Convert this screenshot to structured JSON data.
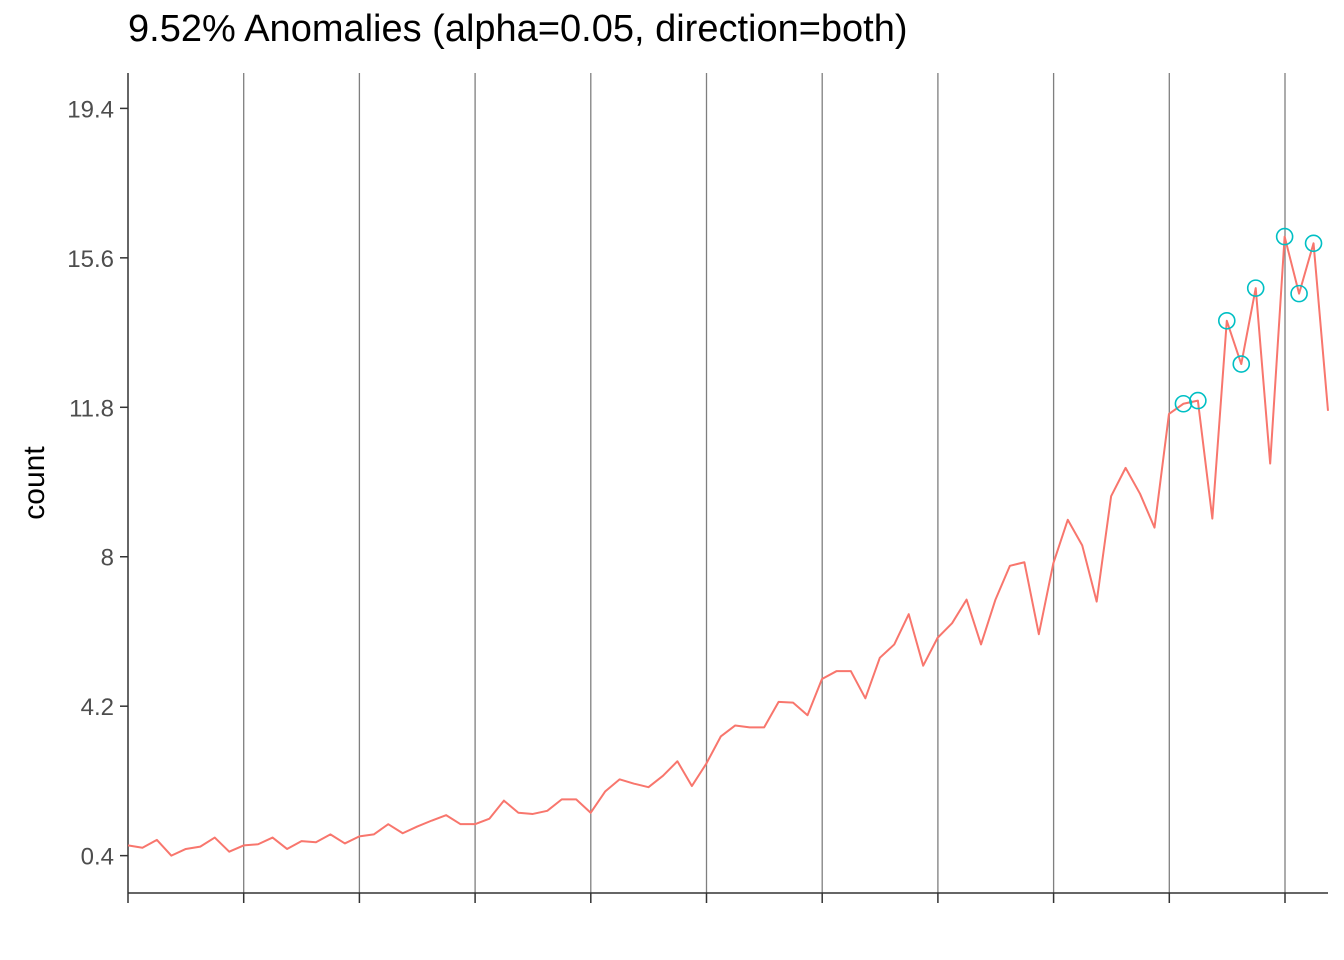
{
  "chart_data": {
    "type": "line",
    "title": "9.52% Anomalies (alpha=0.05, direction=both)",
    "xlabel": "",
    "ylabel": "count",
    "yticks": [
      "0.4",
      "4.2",
      "8",
      "11.8",
      "15.6",
      "19.4"
    ],
    "ylim": [
      -0.55,
      20.3
    ],
    "xlim": [
      0,
      83
    ],
    "x_tick_count": 11,
    "x_ticklabels_shown": false,
    "grid": "vertical lines only",
    "legend": "none",
    "series": [
      {
        "values": [
          0.66,
          0.6,
          0.8,
          0.4,
          0.57,
          0.63,
          0.86,
          0.5,
          0.66,
          0.69,
          0.86,
          0.57,
          0.77,
          0.74,
          0.94,
          0.71,
          0.89,
          0.94,
          1.2,
          0.97,
          1.14,
          1.29,
          1.43,
          1.2,
          1.2,
          1.34,
          1.8,
          1.49,
          1.46,
          1.54,
          1.83,
          1.83,
          1.49,
          2.03,
          2.34,
          2.23,
          2.14,
          2.43,
          2.8,
          2.17,
          2.74,
          3.43,
          3.71,
          3.66,
          3.66,
          4.31,
          4.29,
          3.97,
          4.89,
          5.09,
          5.09,
          4.4,
          5.43,
          5.77,
          6.54,
          5.23,
          5.94,
          6.31,
          6.91,
          5.77,
          6.91,
          7.77,
          7.86,
          6.03,
          7.83,
          8.94,
          8.29,
          6.86,
          9.54,
          10.26,
          9.6,
          8.74,
          11.63,
          11.89,
          11.97,
          8.97,
          14.0,
          12.9,
          14.83,
          10.37,
          16.14,
          14.69,
          15.97,
          11.71
        ]
      }
    ],
    "anomalies_x": [
      73,
      74,
      76,
      77,
      78,
      80,
      81,
      82
    ],
    "colors": {
      "line": "#f8766d",
      "anomaly_marker": "#00bfc4",
      "grid": "#7f7f7f",
      "axis": "#333333",
      "text": "#4d4d4d"
    }
  }
}
